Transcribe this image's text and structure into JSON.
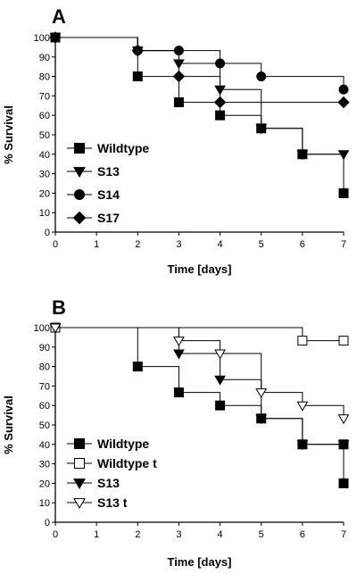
{
  "chart_data": [
    {
      "type": "line",
      "panel_label": "A",
      "title": "",
      "xlabel": "Time [days]",
      "ylabel": "% Survival",
      "xlim": [
        0,
        7
      ],
      "ylim": [
        0,
        100
      ],
      "x_ticks": [
        0,
        1,
        2,
        3,
        4,
        5,
        6,
        7
      ],
      "y_ticks": [
        0,
        10,
        20,
        30,
        40,
        50,
        60,
        70,
        80,
        90,
        100
      ],
      "step": true,
      "legend_position": "bottom-left",
      "series": [
        {
          "name": "Wildtype",
          "marker": "square",
          "filled": true,
          "points": [
            [
              0,
              100
            ],
            [
              2,
              80
            ],
            [
              3,
              66.7
            ],
            [
              4,
              60
            ],
            [
              5,
              53.3
            ],
            [
              6,
              40
            ],
            [
              7,
              20
            ]
          ]
        },
        {
          "name": "S13",
          "marker": "triangle-down",
          "filled": true,
          "points": [
            [
              0,
              100
            ],
            [
              2,
              93.3
            ],
            [
              3,
              86.7
            ],
            [
              4,
              73.3
            ],
            [
              5,
              53.3
            ],
            [
              6,
              40
            ],
            [
              7,
              40
            ]
          ]
        },
        {
          "name": "S14",
          "marker": "circle",
          "filled": true,
          "points": [
            [
              0,
              100
            ],
            [
              2,
              93.3
            ],
            [
              3,
              93.3
            ],
            [
              4,
              86.7
            ],
            [
              5,
              80
            ],
            [
              7,
              73.3
            ]
          ]
        },
        {
          "name": "S17",
          "marker": "diamond",
          "filled": true,
          "points": [
            [
              0,
              100
            ],
            [
              2,
              93.3
            ],
            [
              3,
              80
            ],
            [
              4,
              66.7
            ],
            [
              7,
              66.7
            ]
          ]
        }
      ]
    },
    {
      "type": "line",
      "panel_label": "B",
      "title": "",
      "xlabel": "Time [days]",
      "ylabel": "% Survival",
      "xlim": [
        0,
        7
      ],
      "ylim": [
        0,
        100
      ],
      "x_ticks": [
        0,
        1,
        2,
        3,
        4,
        5,
        6,
        7
      ],
      "y_ticks": [
        0,
        10,
        20,
        30,
        40,
        50,
        60,
        70,
        80,
        90,
        100
      ],
      "step": true,
      "legend_position": "bottom-left",
      "series": [
        {
          "name": "Wildtype",
          "marker": "square",
          "filled": true,
          "points": [
            [
              0,
              100
            ],
            [
              2,
              80
            ],
            [
              3,
              66.7
            ],
            [
              4,
              60
            ],
            [
              5,
              53.3
            ],
            [
              6,
              40
            ],
            [
              7,
              40
            ],
            [
              7,
              20
            ]
          ]
        },
        {
          "name": "Wildtype t",
          "marker": "square",
          "filled": false,
          "points": [
            [
              0,
              100
            ],
            [
              6,
              93.3
            ],
            [
              7,
              93.3
            ]
          ]
        },
        {
          "name": "S13",
          "marker": "triangle-down",
          "filled": true,
          "points": [
            [
              0,
              100
            ],
            [
              3,
              86.7
            ],
            [
              4,
              73.3
            ],
            [
              5,
              53.3
            ],
            [
              6,
              40
            ],
            [
              7,
              40
            ]
          ]
        },
        {
          "name": "S13 t",
          "marker": "triangle-down",
          "filled": false,
          "points": [
            [
              0,
              100
            ],
            [
              3,
              93.3
            ],
            [
              4,
              86.7
            ],
            [
              5,
              66.7
            ],
            [
              6,
              60
            ],
            [
              7,
              53.3
            ]
          ]
        }
      ]
    }
  ]
}
